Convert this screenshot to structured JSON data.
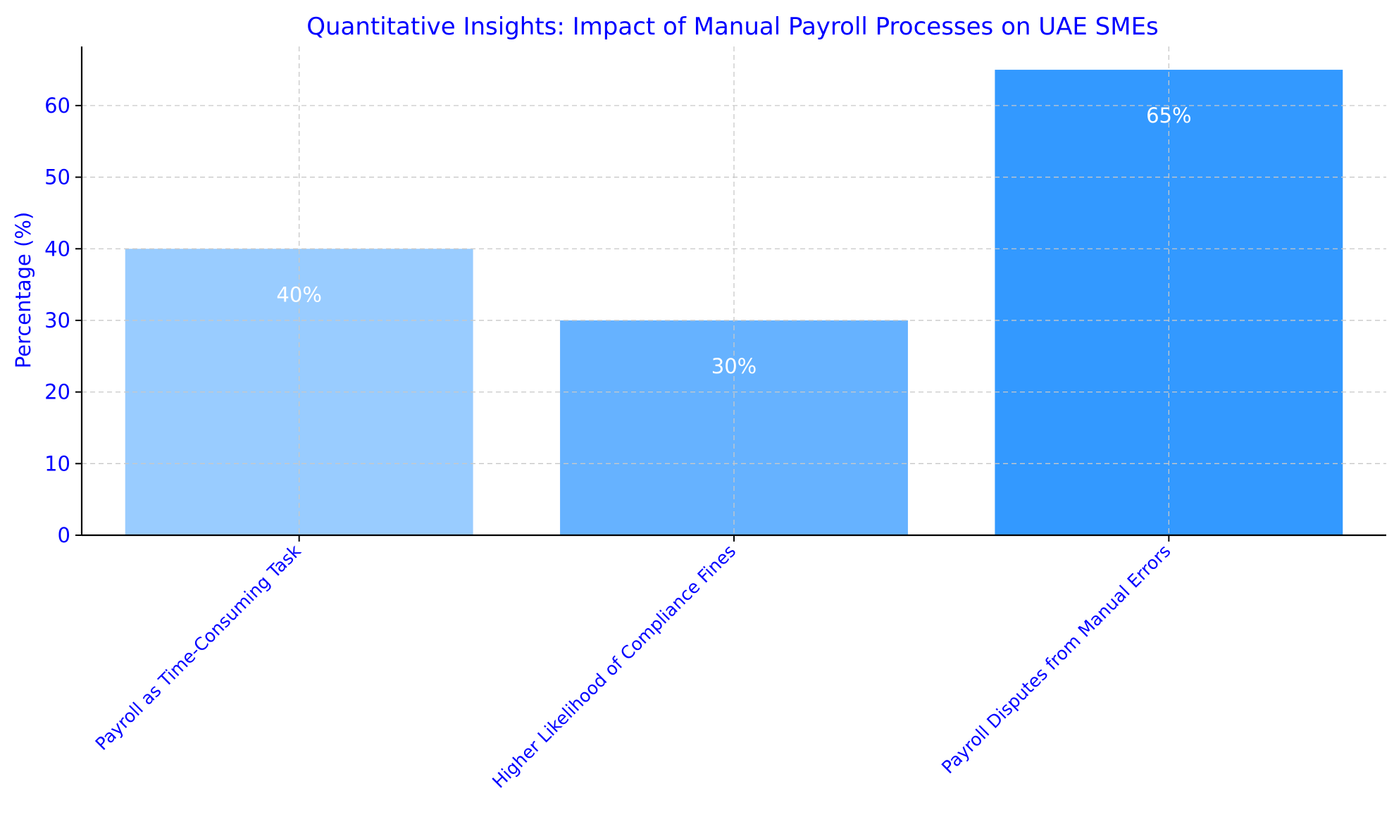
{
  "chart_data": {
    "type": "bar",
    "title": "Quantitative Insights: Impact of Manual Payroll Processes on UAE SMEs",
    "xlabel": "",
    "ylabel": "Percentage (%)",
    "categories": [
      "Payroll as Time-Consuming Task",
      "Higher Likelihood of Compliance Fines",
      "Payroll Disputes from Manual Errors"
    ],
    "values": [
      40,
      30,
      65
    ],
    "data_labels": [
      "40%",
      "30%",
      "65%"
    ],
    "bar_colors": [
      "#99ccff",
      "#66b2ff",
      "#3399ff"
    ],
    "ylim": [
      0,
      68.25
    ],
    "yticks": [
      0,
      10,
      20,
      30,
      40,
      50,
      60
    ],
    "grid": true,
    "text_color": "#0000ff"
  }
}
